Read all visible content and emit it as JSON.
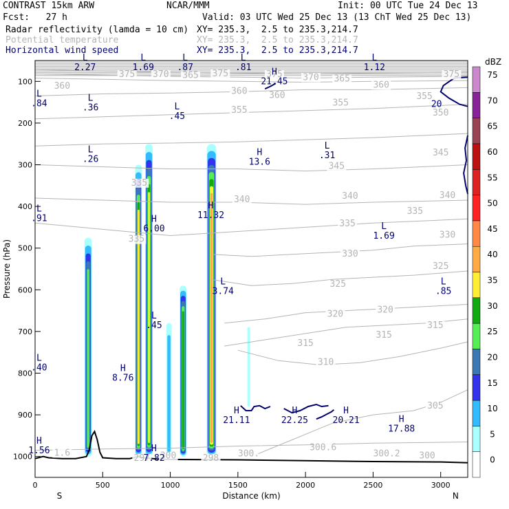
{
  "header": {
    "model": "CONTRAST 15km ARW",
    "org": "NCAR/MMM",
    "init": "Init: 00 UTC Tue 24 Dec 13",
    "fcst": "Fcst:   27 h",
    "valid": "Valid: 03 UTC Wed 25 Dec 13 (13 ChT Wed 25 Dec 13)",
    "fields": [
      {
        "name": "Radar reflectivity (lamda = 10 cm)",
        "xy": "XY= 235.3,  2.5 to 235.3,214.7",
        "color": "#000000"
      },
      {
        "name": "Potential temperature",
        "xy": "XY= 235.3,  2.5 to 235.3,214.7",
        "color": "#b4b4b4"
      },
      {
        "name": "Horizontal wind speed",
        "xy": "XY= 235.3,  2.5 to 235.3,214.7",
        "color": "#00006e"
      }
    ]
  },
  "chart_data": {
    "type": "cross-section",
    "xlabel": "Distance (km)",
    "ylabel": "Pressure (hPa)",
    "xlim": [
      0,
      3200
    ],
    "ylim": [
      1050,
      50
    ],
    "x_ticks": [
      0,
      500,
      1000,
      1500,
      2000,
      2500,
      3000
    ],
    "y_ticks": [
      100,
      200,
      300,
      400,
      500,
      600,
      700,
      800,
      900,
      1000
    ],
    "x_ends": {
      "left": "S",
      "right": "N"
    },
    "colorbar": {
      "unit": "dBZ",
      "levels": [
        0,
        5,
        10,
        15,
        20,
        25,
        30,
        35,
        40,
        45,
        50,
        55,
        60,
        65,
        70,
        75
      ],
      "colors": [
        "#ffffff",
        "#aaffff",
        "#33bbff",
        "#3333ee",
        "#3c78b4",
        "#55ee55",
        "#11aa11",
        "#ffee33",
        "#ffaa44",
        "#ff8844",
        "#ff2222",
        "#dd2222",
        "#bb1111",
        "#994455",
        "#882299",
        "#cc88cc"
      ]
    },
    "theta_contours": [
      {
        "label": "300",
        "p": [
          985,
          982,
          980,
          975,
          972,
          968,
          965
        ],
        "x": [
          0,
          500,
          1000,
          1500,
          2000,
          2500,
          3200
        ]
      },
      {
        "label": "305",
        "p": [
          1000,
          960,
          920,
          900,
          890,
          870,
          840
        ],
        "x": [
          1600,
          1900,
          2200,
          2500,
          2800,
          3000,
          3200
        ]
      },
      {
        "label": "310",
        "p": [
          745,
          770,
          780,
          775,
          760,
          740,
          725
        ],
        "x": [
          1500,
          1800,
          2100,
          2400,
          2700,
          3000,
          3200
        ]
      },
      {
        "label": "315",
        "p": [
          735,
          720,
          705,
          690,
          685,
          680,
          670
        ],
        "x": [
          1400,
          1700,
          2000,
          2300,
          2600,
          2900,
          3200
        ]
      },
      {
        "label": "320",
        "p": [
          680,
          670,
          655,
          650,
          645,
          640,
          635
        ],
        "x": [
          1400,
          1700,
          2000,
          2300,
          2600,
          2900,
          3200
        ]
      },
      {
        "label": "325",
        "p": [
          575,
          590,
          585,
          575,
          570,
          565,
          555
        ],
        "x": [
          1300,
          1600,
          1900,
          2200,
          2500,
          2800,
          3200
        ]
      },
      {
        "label": "330",
        "p": [
          515,
          520,
          515,
          510,
          505,
          495,
          490
        ],
        "x": [
          1300,
          1600,
          1900,
          2200,
          2500,
          2800,
          3200
        ]
      },
      {
        "label": "335",
        "p": [
          440,
          455,
          470,
          460,
          450,
          440,
          430
        ],
        "x": [
          0,
          500,
          1000,
          1500,
          2000,
          2500,
          3200
        ]
      },
      {
        "label": "340",
        "p": [
          380,
          385,
          390,
          390,
          395,
          390,
          385
        ],
        "x": [
          0,
          500,
          1000,
          1500,
          2000,
          2500,
          3200
        ]
      },
      {
        "label": "345",
        "p": [
          300,
          305,
          310,
          310,
          315,
          310,
          300
        ],
        "x": [
          0,
          500,
          1000,
          1500,
          2000,
          2500,
          3200
        ]
      },
      {
        "label": "350",
        "p": [
          255,
          250,
          248,
          245,
          240,
          235,
          225
        ],
        "x": [
          0,
          500,
          1000,
          1500,
          2000,
          2500,
          3200
        ]
      },
      {
        "label": "355",
        "p": [
          190,
          185,
          180,
          175,
          170,
          165,
          155
        ],
        "x": [
          0,
          500,
          1000,
          1500,
          2000,
          2500,
          3200
        ]
      },
      {
        "label": "360",
        "p": [
          135,
          130,
          128,
          125,
          120,
          120,
          115
        ],
        "x": [
          0,
          500,
          1000,
          1500,
          2000,
          2500,
          3200
        ]
      },
      {
        "label": "365",
        "p": [
          92,
          95,
          98,
          100,
          102,
          100,
          98
        ],
        "x": [
          0,
          500,
          1000,
          1500,
          2000,
          2500,
          3200
        ]
      },
      {
        "label": "370",
        "p": [
          82,
          85,
          88,
          90,
          92,
          90,
          88
        ],
        "x": [
          0,
          500,
          1000,
          1500,
          2000,
          2500,
          3200
        ]
      },
      {
        "label": "375",
        "p": [
          72,
          75,
          78,
          80,
          82,
          80,
          78
        ],
        "x": [
          0,
          500,
          1000,
          1500,
          2000,
          2500,
          3200
        ]
      }
    ],
    "theta_labels": [
      {
        "text": "360",
        "x": 200,
        "p": 118
      },
      {
        "text": "375",
        "x": 680,
        "p": 90
      },
      {
        "text": "370",
        "x": 930,
        "p": 90
      },
      {
        "text": "365",
        "x": 1150,
        "p": 92
      },
      {
        "text": "375",
        "x": 1370,
        "p": 88
      },
      {
        "text": "375",
        "x": 1770,
        "p": 90
      },
      {
        "text": "370",
        "x": 2040,
        "p": 97
      },
      {
        "text": "365",
        "x": 2270,
        "p": 100
      },
      {
        "text": "375",
        "x": 3080,
        "p": 90
      },
      {
        "text": "360",
        "x": 1510,
        "p": 130
      },
      {
        "text": "360",
        "x": 1790,
        "p": 140
      },
      {
        "text": "360",
        "x": 2560,
        "p": 115
      },
      {
        "text": "355",
        "x": 1510,
        "p": 175
      },
      {
        "text": "355",
        "x": 2260,
        "p": 158
      },
      {
        "text": "355",
        "x": 2880,
        "p": 142
      },
      {
        "text": "350",
        "x": 3000,
        "p": 182
      },
      {
        "text": "345",
        "x": 2230,
        "p": 310
      },
      {
        "text": "345",
        "x": 3000,
        "p": 278
      },
      {
        "text": "340",
        "x": 1530,
        "p": 390
      },
      {
        "text": "340",
        "x": 2330,
        "p": 382
      },
      {
        "text": "340",
        "x": 3050,
        "p": 380
      },
      {
        "text": "335",
        "x": 2310,
        "p": 448
      },
      {
        "text": "335",
        "x": 2810,
        "p": 418
      },
      {
        "text": "335",
        "x": 770,
        "p": 350
      },
      {
        "text": "330",
        "x": 2330,
        "p": 520
      },
      {
        "text": "330",
        "x": 3050,
        "p": 475
      },
      {
        "text": "335",
        "x": 750,
        "p": 485
      },
      {
        "text": "325",
        "x": 2240,
        "p": 593
      },
      {
        "text": "325",
        "x": 3000,
        "p": 550
      },
      {
        "text": "320",
        "x": 2220,
        "p": 665
      },
      {
        "text": "320",
        "x": 2590,
        "p": 655
      },
      {
        "text": "315",
        "x": 2000,
        "p": 735
      },
      {
        "text": "315",
        "x": 2580,
        "p": 715
      },
      {
        "text": "315",
        "x": 2960,
        "p": 692
      },
      {
        "text": "310",
        "x": 2150,
        "p": 780
      },
      {
        "text": "305",
        "x": 2960,
        "p": 885
      },
      {
        "text": "300.6",
        "x": 2130,
        "p": 985
      },
      {
        "text": "300.2",
        "x": 2600,
        "p": 1000
      },
      {
        "text": "300",
        "x": 2900,
        "p": 1005
      },
      {
        "text": "300.",
        "x": 1580,
        "p": 1000
      },
      {
        "text": "298",
        "x": 1300,
        "p": 1010
      },
      {
        "text": "297",
        "x": 790,
        "p": 1010
      },
      {
        "text": "300",
        "x": 985,
        "p": 1005
      },
      {
        "text": "1.6",
        "x": 200,
        "p": 998
      }
    ],
    "wind_extrema": [
      {
        "type": "L",
        "value": "2.27",
        "x": 370,
        "p": 73
      },
      {
        "type": "L",
        "value": "1.69",
        "x": 800,
        "p": 73
      },
      {
        "type": "L",
        "value": ".87",
        "x": 1110,
        "p": 73
      },
      {
        "type": "L",
        "value": ".81",
        "x": 1540,
        "p": 73
      },
      {
        "type": "L",
        "value": "1.12",
        "x": 2510,
        "p": 73
      },
      {
        "type": "H",
        "value": "21.45",
        "x": 1770,
        "p": 107
      },
      {
        "type": "L",
        "value": ".84",
        "x": 30,
        "p": 160
      },
      {
        "type": "L",
        "value": ".36",
        "x": 410,
        "p": 170
      },
      {
        "type": "L",
        "value": ".45",
        "x": 1050,
        "p": 190
      },
      {
        "type": "L",
        "value": ".26",
        "x": 410,
        "p": 293
      },
      {
        "type": "H",
        "value": "13.6",
        "x": 1660,
        "p": 300
      },
      {
        "type": "L",
        "value": ".31",
        "x": 2160,
        "p": 284
      },
      {
        "type": "H",
        "value": "11.32",
        "x": 1300,
        "p": 428
      },
      {
        "type": "H",
        "value": "6.00",
        "x": 880,
        "p": 460
      },
      {
        "type": "L",
        "value": ".91",
        "x": 30,
        "p": 435
      },
      {
        "type": "L",
        "value": "1.69",
        "x": 2580,
        "p": 477
      },
      {
        "type": "L",
        "value": "3.74",
        "x": 1390,
        "p": 610
      },
      {
        "type": "L",
        "value": ".85",
        "x": 3020,
        "p": 610
      },
      {
        "type": "L",
        "value": ".45",
        "x": 880,
        "p": 692
      },
      {
        "type": "H",
        "value": "8.76",
        "x": 650,
        "p": 818
      },
      {
        "type": "L",
        "value": ".40",
        "x": 30,
        "p": 793
      },
      {
        "type": "H",
        "value": "21.11",
        "x": 1490,
        "p": 920
      },
      {
        "type": "H",
        "value": "22.25",
        "x": 1920,
        "p": 920
      },
      {
        "type": "H",
        "value": "20.21",
        "x": 2300,
        "p": 920
      },
      {
        "type": "H",
        "value": "17.88",
        "x": 2710,
        "p": 940
      },
      {
        "type": "H",
        "value": "1.56",
        "x": 30,
        "p": 992
      },
      {
        "type": "H",
        "value": "7.82",
        "x": 880,
        "p": 1010
      }
    ],
    "wind_contours": [
      {
        "label": "20",
        "x": [
          3200,
          3100,
          3020,
          3000,
          3060,
          3140,
          3200
        ],
        "p": [
          90,
          92,
          110,
          125,
          140,
          155,
          160
        ]
      },
      {
        "label": "",
        "x": [
          3200,
          3180,
          3190,
          3170,
          3185,
          3200
        ],
        "p": [
          230,
          260,
          290,
          320,
          350,
          370
        ]
      },
      {
        "label": "",
        "x": [
          1520,
          1560,
          1600,
          1620,
          1660,
          1700,
          1740
        ],
        "p": [
          878,
          890,
          890,
          880,
          878,
          885,
          880
        ]
      },
      {
        "label": "",
        "x": [
          1840,
          1900,
          1960,
          2020,
          2080,
          2120,
          2170
        ],
        "p": [
          885,
          895,
          890,
          880,
          875,
          880,
          878
        ]
      },
      {
        "label": "",
        "x": [
          2080,
          2120,
          2160,
          2190,
          2210
        ],
        "p": [
          910,
          905,
          898,
          893,
          888
        ]
      },
      {
        "label": "",
        "x": [
          1700,
          1740,
          1780
        ],
        "p": [
          118,
          112,
          105
        ]
      }
    ],
    "reflectivity_cells": [
      {
        "x0": 365,
        "x1": 420,
        "p_top": 475,
        "p_bot": 1000,
        "dbz_max": 25
      },
      {
        "x0": 740,
        "x1": 790,
        "p_top": 300,
        "p_bot": 1000,
        "dbz_max": 35
      },
      {
        "x0": 815,
        "x1": 870,
        "p_top": 250,
        "p_bot": 1000,
        "dbz_max": 35
      },
      {
        "x0": 970,
        "x1": 1010,
        "p_top": 680,
        "p_bot": 1000,
        "dbz_max": 10
      },
      {
        "x0": 1070,
        "x1": 1120,
        "p_top": 590,
        "p_bot": 1000,
        "dbz_max": 30
      },
      {
        "x0": 1270,
        "x1": 1340,
        "p_top": 250,
        "p_bot": 1000,
        "dbz_max": 40
      },
      {
        "x0": 1570,
        "x1": 1590,
        "p_top": 690,
        "p_bot": 880,
        "dbz_max": 5
      }
    ],
    "terrain": {
      "x": [
        0,
        60,
        100,
        200,
        300,
        380,
        400,
        420,
        440,
        460,
        480,
        500,
        600,
        700,
        760,
        800,
        900,
        1000,
        1500,
        2000,
        2500,
        3000,
        3200
      ],
      "p": [
        1005,
        1000,
        1003,
        1005,
        1005,
        1000,
        985,
        950,
        940,
        960,
        990,
        1003,
        1005,
        1005,
        1000,
        1003,
        1006,
        1007,
        1008,
        1010,
        1012,
        1013,
        1015
      ]
    }
  }
}
